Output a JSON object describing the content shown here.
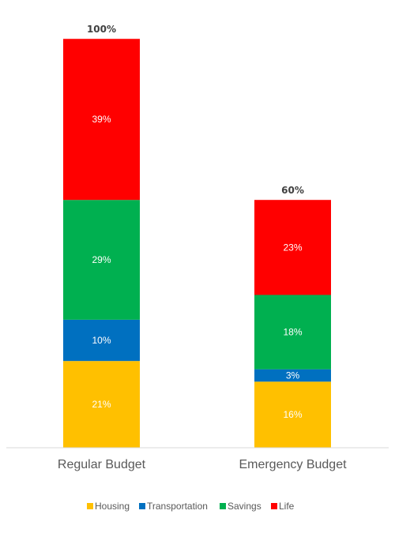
{
  "chart_data": {
    "type": "bar",
    "stacked": true,
    "categories": [
      "Regular Budget",
      "Emergency Budget"
    ],
    "totals": [
      "100%",
      "60%"
    ],
    "ylim": [
      0,
      100
    ],
    "grid": false,
    "legend_position": "bottom",
    "series": [
      {
        "name": "Housing",
        "color": "#FFC000",
        "values": [
          21,
          16
        ],
        "labels": [
          "21%",
          "16%"
        ]
      },
      {
        "name": "Transportation",
        "color": "#0070C0",
        "values": [
          10,
          3
        ],
        "labels": [
          "10%",
          "3%"
        ]
      },
      {
        "name": "Savings",
        "color": "#00B050",
        "values": [
          29,
          18
        ],
        "labels": [
          "29%",
          "18%"
        ]
      },
      {
        "name": "Life",
        "color": "#FF0000",
        "values": [
          39,
          23
        ],
        "labels": [
          "39%",
          "23%"
        ]
      }
    ]
  }
}
